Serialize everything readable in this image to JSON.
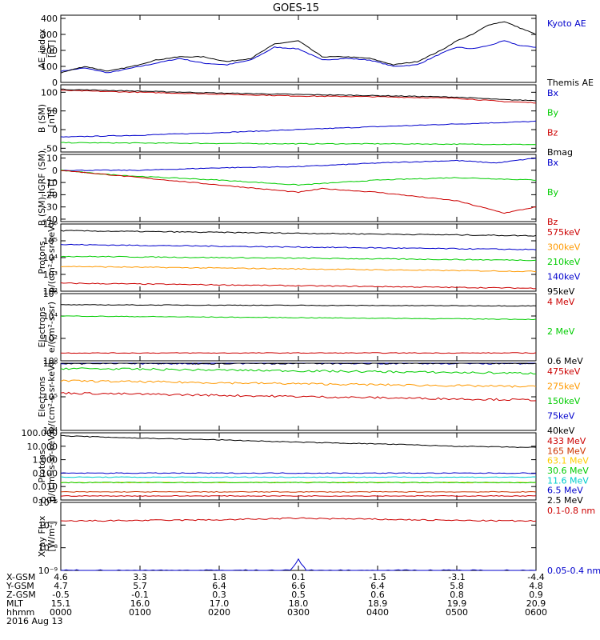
{
  "title": "GOES-15",
  "time_axis": {
    "ticks": [
      "0000",
      "0100",
      "0200",
      "0300",
      "0400",
      "0500",
      "0600"
    ],
    "date": "2016 Aug 13",
    "range_hours": [
      0,
      6
    ]
  },
  "ephemeris": {
    "rows": [
      {
        "label": "X-GSM",
        "values": [
          "4.6",
          "3.3",
          "1.8",
          "0.1",
          "-1.5",
          "-3.1",
          "-4.4"
        ]
      },
      {
        "label": "Y-GSM",
        "values": [
          "4.7",
          "5.7",
          "6.4",
          "6.6",
          "6.4",
          "5.8",
          "4.8"
        ]
      },
      {
        "label": "Z-GSM",
        "values": [
          "-0.5",
          "-0.1",
          "0.3",
          "0.5",
          "0.6",
          "0.8",
          "0.9"
        ]
      },
      {
        "label": "MLT",
        "values": [
          "15.1",
          "16.0",
          "17.0",
          "18.0",
          "18.9",
          "19.9",
          "20.9"
        ]
      },
      {
        "label": "hhmm",
        "values": [
          "0000",
          "0100",
          "0200",
          "0300",
          "0400",
          "0500",
          "0600"
        ]
      }
    ]
  },
  "chart_data": [
    {
      "type": "line",
      "ylabel": [
        "AE_index",
        "[nT]"
      ],
      "yscale": "linear",
      "ylim": [
        0,
        420
      ],
      "yticks": [
        0,
        100,
        200,
        300,
        400
      ],
      "yticklabels": [
        "0",
        "100",
        "200",
        "300",
        "400"
      ],
      "series": [
        {
          "name": "Kyoto AE",
          "color": "#0000cc",
          "x": [
            0,
            0.3,
            0.6,
            0.9,
            1.2,
            1.5,
            1.8,
            2.1,
            2.4,
            2.7,
            3.0,
            3.3,
            3.6,
            3.9,
            4.2,
            4.5,
            4.8,
            5.0,
            5.2,
            5.4,
            5.6,
            5.8,
            6.0
          ],
          "y": [
            70,
            90,
            60,
            90,
            120,
            150,
            120,
            110,
            140,
            220,
            210,
            140,
            150,
            140,
            100,
            110,
            180,
            220,
            210,
            230,
            260,
            230,
            220
          ]
        },
        {
          "name": "Themis AE",
          "color": "#000000",
          "x": [
            0,
            0.3,
            0.6,
            0.9,
            1.2,
            1.5,
            1.8,
            2.1,
            2.4,
            2.7,
            3.0,
            3.3,
            3.6,
            3.9,
            4.2,
            4.5,
            4.8,
            5.0,
            5.2,
            5.4,
            5.6,
            5.8,
            6.0
          ],
          "y": [
            60,
            100,
            70,
            100,
            140,
            160,
            160,
            130,
            150,
            240,
            260,
            160,
            160,
            150,
            110,
            130,
            200,
            260,
            300,
            360,
            380,
            340,
            300
          ]
        }
      ]
    },
    {
      "type": "line",
      "ylabel": [
        "B (SM)",
        "[nT]"
      ],
      "yscale": "linear",
      "ylim": [
        -60,
        120
      ],
      "yticks": [
        -50,
        0,
        50,
        100
      ],
      "yticklabels": [
        "-50",
        "0",
        "50",
        "100"
      ],
      "series": [
        {
          "name": "Bx",
          "color": "#0000cc",
          "x": [
            0,
            1,
            2,
            3,
            4,
            5,
            6
          ],
          "y": [
            -20,
            -15,
            -8,
            0,
            8,
            15,
            22
          ]
        },
        {
          "name": "By",
          "color": "#00cc00",
          "x": [
            0,
            1,
            2,
            3,
            4,
            5,
            6
          ],
          "y": [
            -35,
            -36,
            -37,
            -38,
            -38,
            -39,
            -40
          ]
        },
        {
          "name": "Bz",
          "color": "#cc0000",
          "x": [
            0,
            1,
            2,
            3,
            4,
            5,
            5.6,
            6
          ],
          "y": [
            105,
            100,
            95,
            90,
            88,
            84,
            75,
            72
          ]
        },
        {
          "name": "Bmag",
          "color": "#000000",
          "x": [
            0,
            1,
            2,
            3,
            4,
            5,
            5.6,
            6
          ],
          "y": [
            108,
            103,
            98,
            94,
            91,
            87,
            80,
            78
          ]
        }
      ]
    },
    {
      "type": "line",
      "ylabel": [
        "B (SM)-IGRF (SM)",
        "[nT]"
      ],
      "yscale": "linear",
      "ylim": [
        -42,
        13
      ],
      "yticks": [
        -40,
        -30,
        -20,
        -10,
        0,
        10
      ],
      "yticklabels": [
        "-40",
        "-30",
        "-20",
        "-10",
        "0",
        "10"
      ],
      "series": [
        {
          "name": "Bx",
          "color": "#0000cc",
          "x": [
            0,
            1,
            2,
            3,
            4,
            5,
            5.5,
            6
          ],
          "y": [
            0,
            0,
            2,
            3,
            6,
            8,
            6,
            10
          ]
        },
        {
          "name": "By",
          "color": "#00cc00",
          "x": [
            0,
            0.5,
            1,
            2,
            3,
            4,
            5,
            6
          ],
          "y": [
            0,
            -3,
            -5,
            -8,
            -12,
            -8,
            -6,
            -8
          ]
        },
        {
          "name": "Bz",
          "color": "#cc0000",
          "x": [
            0,
            0.5,
            1,
            2,
            3,
            3.3,
            4,
            5,
            5.6,
            6
          ],
          "y": [
            0,
            -3,
            -6,
            -12,
            -18,
            -15,
            -18,
            -25,
            -35,
            -30
          ]
        }
      ]
    },
    {
      "type": "line",
      "ylabel": [
        "Protons",
        "p/(cm²-s-sr-keV)"
      ],
      "yscale": "log",
      "ylim": [
        100,
        1000000
      ],
      "yticks": [
        100,
        1000,
        10000,
        100000,
        1000000
      ],
      "yticklabels": [
        "10²",
        "10³",
        "10⁴",
        "10⁵",
        "10⁶"
      ],
      "series": [
        {
          "name": "575keV",
          "color": "#cc0000",
          "x": [
            0,
            6
          ],
          "y": [
            300,
            150
          ]
        },
        {
          "name": "300keV",
          "color": "#ff9900",
          "x": [
            0,
            6
          ],
          "y": [
            3000,
            1500
          ]
        },
        {
          "name": "210keV",
          "color": "#00cc00",
          "x": [
            0,
            6
          ],
          "y": [
            12000,
            7000
          ]
        },
        {
          "name": "140keV",
          "color": "#0000cc",
          "x": [
            0,
            6
          ],
          "y": [
            60000,
            30000
          ]
        },
        {
          "name": "95keV",
          "color": "#000000",
          "x": [
            0,
            6
          ],
          "y": [
            400000,
            200000
          ]
        }
      ]
    },
    {
      "type": "line",
      "ylabel": [
        "Electrons",
        "e/(cm²-s-sr)"
      ],
      "yscale": "log",
      "ylim": [
        1,
        1000000
      ],
      "yticks": [
        1,
        100,
        10000,
        1000000
      ],
      "yticklabels": [
        "10⁰",
        "10²",
        "10⁴",
        "10⁶"
      ],
      "series": [
        {
          "name": "4 MeV",
          "color": "#cc0000",
          "x": [
            0,
            6
          ],
          "y": [
            5,
            5
          ]
        },
        {
          "name": "2 MeV",
          "color": "#00cc00",
          "x": [
            0,
            6
          ],
          "y": [
            10000,
            5000
          ]
        },
        {
          "name": "0.6 MeV",
          "color": "#000000",
          "x": [
            0,
            6
          ],
          "y": [
            100000,
            80000
          ]
        }
      ]
    },
    {
      "type": "line",
      "ylabel": [
        "Electrons",
        "e/(cm²-s-sr-keV)"
      ],
      "yscale": "log",
      "ylim": [
        10000,
        1000000
      ],
      "yticks": [
        10000,
        100000,
        1000000
      ],
      "yticklabels": [
        "10⁴",
        "10⁵",
        "10⁶"
      ],
      "series": [
        {
          "name": "475keV",
          "color": "#cc0000",
          "x": [
            0,
            6
          ],
          "y": [
            130000,
            80000
          ]
        },
        {
          "name": "275keV",
          "color": "#ff9900",
          "x": [
            0,
            6
          ],
          "y": [
            300000,
            200000
          ]
        },
        {
          "name": "150keV",
          "color": "#00cc00",
          "x": [
            0,
            6
          ],
          "y": [
            700000,
            500000
          ]
        },
        {
          "name": "75keV",
          "color": "#0000cc",
          "x": [
            0,
            6
          ],
          "y": [
            1000000,
            1000000
          ]
        },
        {
          "name": "40keV",
          "color": "#000000",
          "x": [
            0,
            6
          ],
          "y": [
            1000000,
            1000000
          ]
        }
      ]
    },
    {
      "type": "line",
      "ylabel": [
        "Protons",
        "p/(cm²-s-sr-keV)"
      ],
      "yscale": "log",
      "ylim": [
        0.001,
        100
      ],
      "yticks": [
        0.001,
        0.01,
        0.1,
        1,
        10,
        100
      ],
      "yticklabels": [
        "0.001",
        "0.010",
        "0.100",
        "1.000",
        "10.000",
        "100.000"
      ],
      "series": [
        {
          "name": "433 MeV",
          "color": "#cc0000",
          "x": [
            0,
            6
          ],
          "y": [
            0.002,
            0.002
          ]
        },
        {
          "name": "165 MeV",
          "color": "#cc3300",
          "x": [
            0,
            6
          ],
          "y": [
            0.004,
            0.004
          ]
        },
        {
          "name": "63.1 MeV",
          "color": "#ffcc00",
          "x": [
            0,
            6
          ],
          "y": [
            0.02,
            0.02
          ]
        },
        {
          "name": "30.6 MeV",
          "color": "#00cc00",
          "x": [
            0,
            6
          ],
          "y": [
            0.02,
            0.02
          ]
        },
        {
          "name": "11.6 MeV",
          "color": "#00cccc",
          "x": [
            0,
            6
          ],
          "y": [
            0.05,
            0.05
          ]
        },
        {
          "name": "6.5 MeV",
          "color": "#0000cc",
          "x": [
            0,
            6
          ],
          "y": [
            0.1,
            0.1
          ]
        },
        {
          "name": "2.5 MeV",
          "color": "#000000",
          "x": [
            0,
            1,
            2,
            3,
            4,
            5,
            6
          ],
          "y": [
            60,
            40,
            30,
            20,
            15,
            10,
            8
          ]
        }
      ]
    },
    {
      "type": "line",
      "ylabel": [
        "Xray Flux",
        "[W/m²]"
      ],
      "yscale": "log",
      "ylim": [
        1e-09,
        1e-06
      ],
      "yticks": [
        1e-09,
        1e-08,
        1e-07,
        1e-06
      ],
      "yticklabels": [
        "10⁻⁹",
        "10⁻⁸",
        "10⁻⁷",
        "10⁻⁶"
      ],
      "series": [
        {
          "name": "0.1-0.8 nm",
          "color": "#cc0000",
          "x": [
            0,
            1,
            2,
            3,
            4,
            5,
            6
          ],
          "y": [
            1.5e-07,
            1.6e-07,
            1.7e-07,
            2e-07,
            1.8e-07,
            1.6e-07,
            1.5e-07
          ]
        },
        {
          "name": "0.05-0.4 nm",
          "color": "#0000cc",
          "x": [
            0,
            1,
            2,
            2.9,
            3.0,
            3.1,
            4,
            5,
            6
          ],
          "y": [
            1e-09,
            1e-09,
            1e-09,
            1e-09,
            3e-09,
            1e-09,
            1e-09,
            1e-09,
            1e-09
          ]
        }
      ]
    }
  ]
}
